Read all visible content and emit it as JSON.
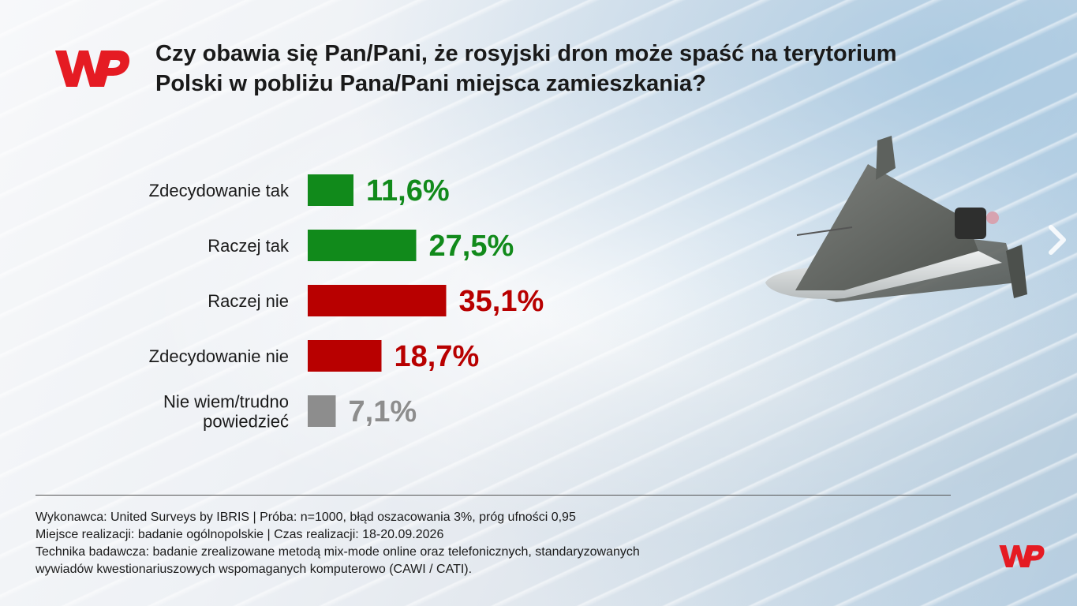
{
  "title": "Czy obawia się Pan/Pani, że rosyjski dron może spaść na terytorium Polski w pobliżu Pana/Pani miejsca zamieszkania?",
  "colors": {
    "green": "#118a1b",
    "red": "#b80000",
    "gray": "#8d8d8d",
    "brand": "#e51b23"
  },
  "chart_data": {
    "type": "bar",
    "orientation": "horizontal",
    "title": "Czy obawia się Pan/Pani, że rosyjski dron może spaść na terytorium Polski w pobliżu Pana/Pani miejsca zamieszkania?",
    "xlabel": "",
    "ylabel": "",
    "grid": false,
    "unit": "%",
    "categories": [
      "Zdecydowanie tak",
      "Raczej tak",
      "Raczej nie",
      "Zdecydowanie nie",
      "Nie wiem/trudno powiedzieć"
    ],
    "category_lines": [
      [
        "Zdecydowanie tak"
      ],
      [
        "Raczej tak"
      ],
      [
        "Raczej nie"
      ],
      [
        "Zdecydowanie nie"
      ],
      [
        "Nie wiem/trudno",
        "powiedzieć"
      ]
    ],
    "values": [
      11.6,
      27.5,
      35.1,
      18.7,
      7.1
    ],
    "value_labels": [
      "11,6%",
      "27,5%",
      "35,1%",
      "18,7%",
      "7,1%"
    ],
    "bar_colors": [
      "#118a1b",
      "#118a1b",
      "#b80000",
      "#b80000",
      "#8d8d8d"
    ],
    "xlim": [
      0,
      50
    ]
  },
  "footer": {
    "line1": "Wykonawca: United Surveys by IBRIS | Próba: n=1000, błąd oszacowania 3%, próg ufności 0,95",
    "line2": "Miejsce realizacji: badanie ogólnopolskie | Czas realizacji: 18-20.09.2026",
    "line3": "Technika badawcza: badanie zrealizowane metodą mix-mode online oraz telefonicznych, standaryzowanych",
    "line4": "wywiadów kwestionariuszowych wspomaganych komputerowo (CAWI / CATI)."
  },
  "icons": {
    "logo": "wp-logo-icon",
    "arrow": "chevron-right-icon",
    "drone": "drone-image"
  }
}
